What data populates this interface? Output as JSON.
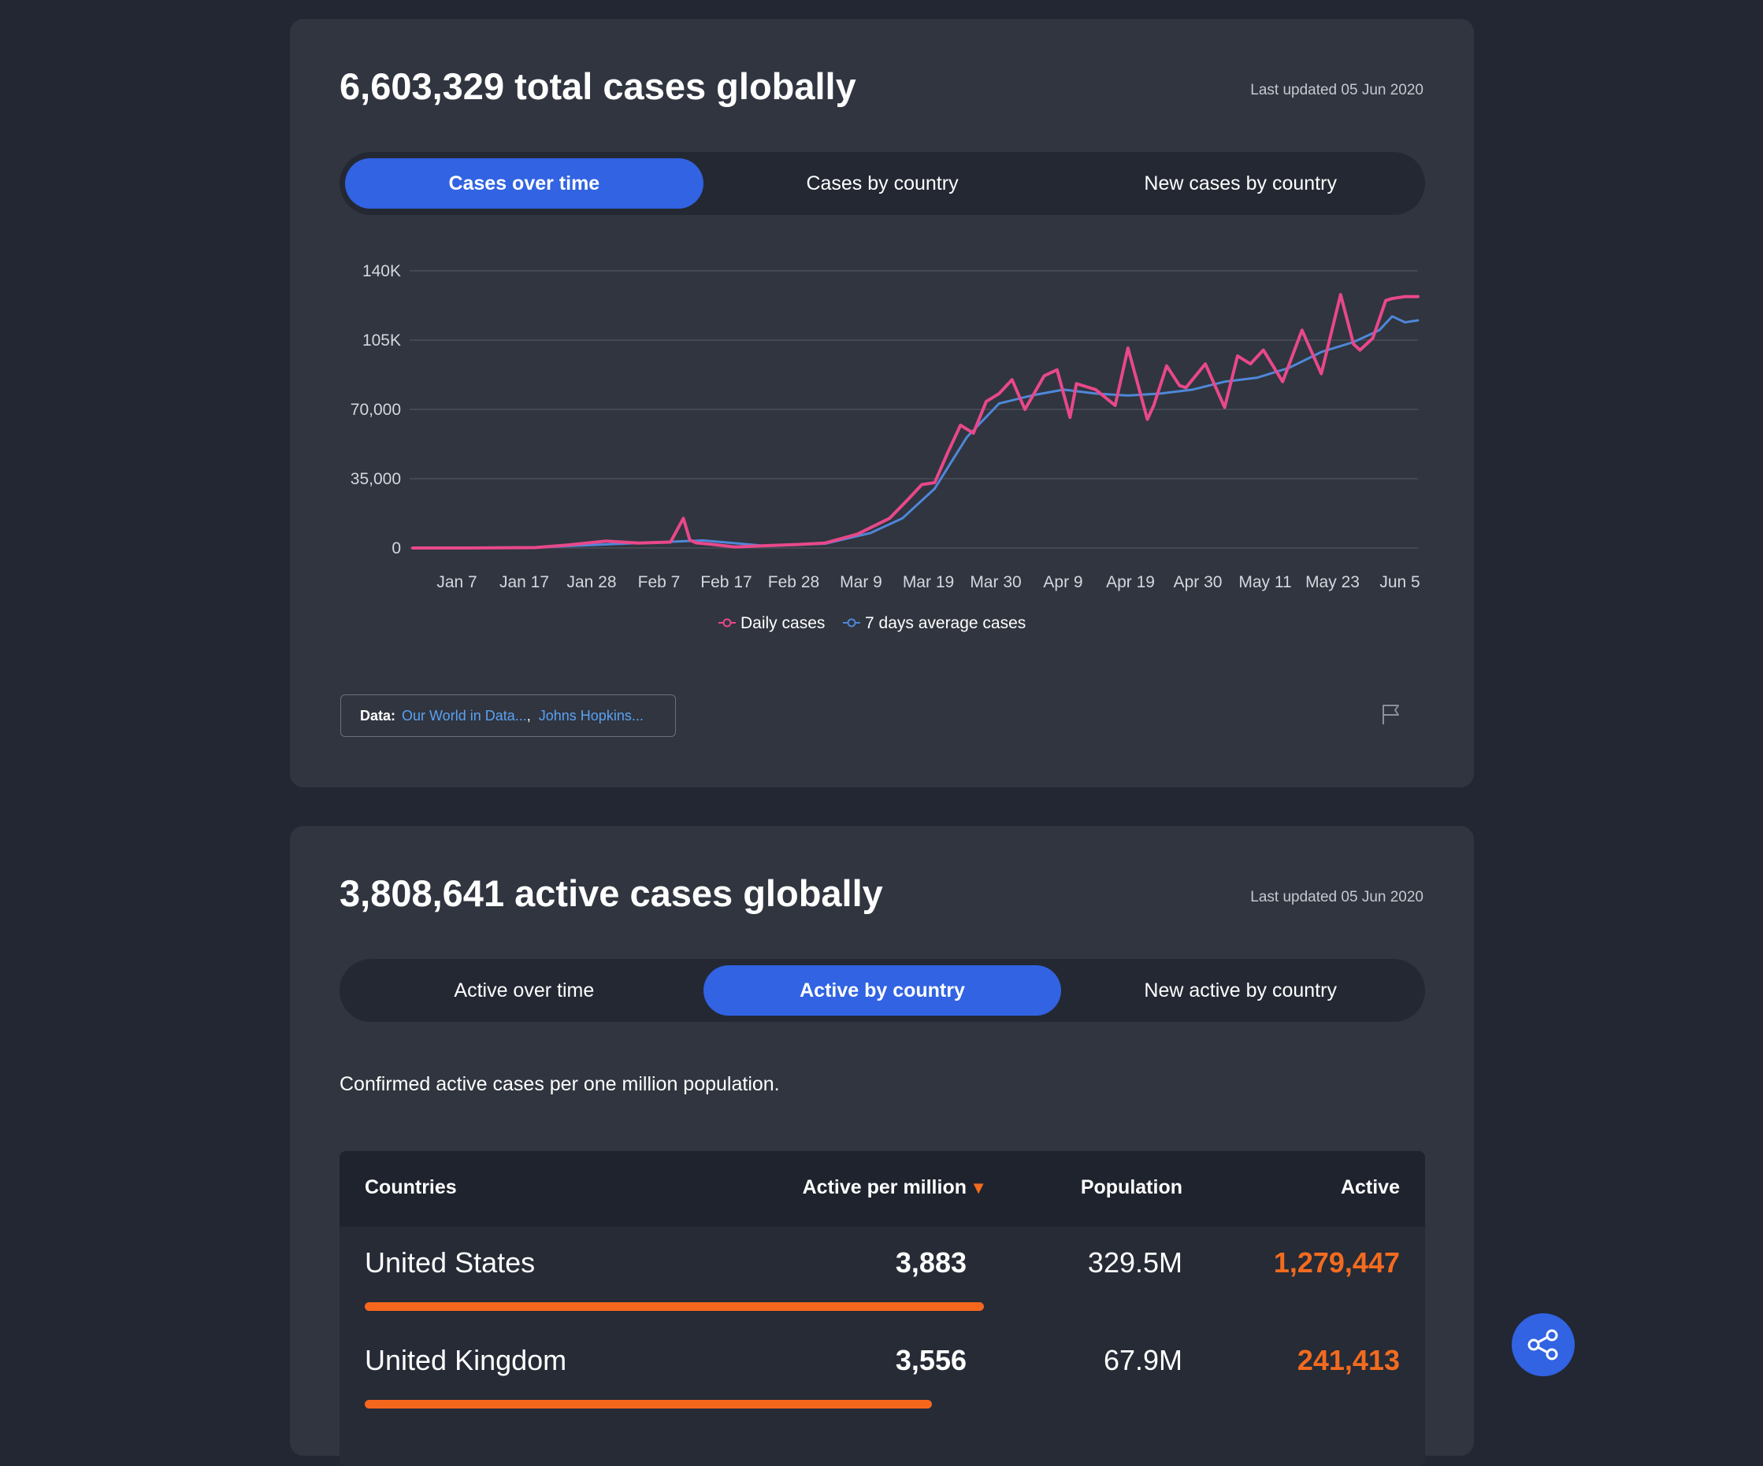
{
  "total_card": {
    "title": "6,603,329 total cases globally",
    "updated": "Last updated 05 Jun 2020",
    "tabs": [
      {
        "label": "Cases over time",
        "active": true
      },
      {
        "label": "Cases by country",
        "active": false
      },
      {
        "label": "New cases by country",
        "active": false
      }
    ],
    "source": {
      "label": "Data:",
      "links": [
        "Our World in Data...",
        "Johns Hopkins..."
      ],
      "separator": ","
    },
    "flag_icon": "flag-icon"
  },
  "chart_data": {
    "type": "line",
    "title": "",
    "xlabel": "",
    "ylabel": "",
    "x_tick_labels": [
      "Jan 7",
      "Jan 17",
      "Jan 28",
      "Feb 7",
      "Feb 17",
      "Feb 28",
      "Mar 9",
      "Mar 19",
      "Mar 30",
      "Apr 9",
      "Apr 19",
      "Apr 30",
      "May 11",
      "May 23",
      "Jun 5"
    ],
    "y_tick_labels": [
      "0",
      "35,000",
      "70,000",
      "105K",
      "140K"
    ],
    "y_ticks": [
      0,
      35000,
      70000,
      105000,
      140000
    ],
    "ylim": [
      0,
      140000
    ],
    "x_range": [
      "2020-01-01",
      "2020-06-05"
    ],
    "grid": true,
    "legend_position": "bottom",
    "series": [
      {
        "name": "Daily cases",
        "color": "#e8488a",
        "x": [
          "2020-01-01",
          "2020-01-10",
          "2020-01-20",
          "2020-01-25",
          "2020-01-31",
          "2020-02-05",
          "2020-02-10",
          "2020-02-12",
          "2020-02-13",
          "2020-02-14",
          "2020-02-16",
          "2020-02-20",
          "2020-02-25",
          "2020-03-01",
          "2020-03-05",
          "2020-03-10",
          "2020-03-15",
          "2020-03-18",
          "2020-03-20",
          "2020-03-22",
          "2020-03-24",
          "2020-03-26",
          "2020-03-28",
          "2020-03-30",
          "2020-04-01",
          "2020-04-03",
          "2020-04-05",
          "2020-04-08",
          "2020-04-10",
          "2020-04-12",
          "2020-04-13",
          "2020-04-16",
          "2020-04-19",
          "2020-04-21",
          "2020-04-24",
          "2020-04-25",
          "2020-04-27",
          "2020-04-29",
          "2020-04-30",
          "2020-05-03",
          "2020-05-06",
          "2020-05-08",
          "2020-05-10",
          "2020-05-12",
          "2020-05-15",
          "2020-05-18",
          "2020-05-21",
          "2020-05-24",
          "2020-05-26",
          "2020-05-27",
          "2020-05-29",
          "2020-05-31",
          "2020-06-01",
          "2020-06-03",
          "2020-06-05"
        ],
        "values": [
          0,
          0,
          200,
          1500,
          3500,
          2500,
          3000,
          15000,
          4000,
          2600,
          2000,
          500,
          1200,
          1800,
          2500,
          7000,
          15000,
          25000,
          32000,
          33000,
          48000,
          62000,
          58000,
          74000,
          78000,
          85000,
          70000,
          87000,
          90000,
          66000,
          83000,
          80000,
          72000,
          101000,
          65000,
          72000,
          92000,
          82000,
          81000,
          93000,
          71000,
          97000,
          93000,
          100000,
          84000,
          110000,
          88000,
          128000,
          103000,
          100000,
          106000,
          125000,
          126000,
          127000,
          127000
        ]
      },
      {
        "name": "7 days average cases",
        "color": "#4f87d8",
        "x": [
          "2020-01-01",
          "2020-01-20",
          "2020-02-05",
          "2020-02-15",
          "2020-02-25",
          "2020-03-05",
          "2020-03-12",
          "2020-03-17",
          "2020-03-22",
          "2020-03-27",
          "2020-04-01",
          "2020-04-06",
          "2020-04-11",
          "2020-04-16",
          "2020-04-21",
          "2020-04-26",
          "2020-05-01",
          "2020-05-06",
          "2020-05-11",
          "2020-05-16",
          "2020-05-21",
          "2020-05-26",
          "2020-05-30",
          "2020-06-01",
          "2020-06-03",
          "2020-06-05"
        ],
        "values": [
          0,
          300,
          2500,
          3800,
          1000,
          2200,
          7500,
          15000,
          30000,
          56000,
          73000,
          77000,
          80000,
          78000,
          77000,
          78000,
          80000,
          84000,
          86000,
          91000,
          99000,
          104000,
          110000,
          117000,
          114000,
          115000
        ]
      }
    ]
  },
  "active_card": {
    "title": "3,808,641 active cases globally",
    "updated": "Last updated 05 Jun 2020",
    "tabs": [
      {
        "label": "Active over time",
        "active": false
      },
      {
        "label": "Active by country",
        "active": true
      },
      {
        "label": "New active by country",
        "active": false
      }
    ],
    "description": "Confirmed active cases per one million population.",
    "table": {
      "headers": {
        "country": "Countries",
        "per_million": "Active per million",
        "sort_indicator": "▼",
        "population": "Population",
        "active": "Active"
      },
      "rows": [
        {
          "country": "United States",
          "per_million": "3,883",
          "population": "329.5M",
          "active": "1,279,447",
          "bar_fraction": 1.0
        },
        {
          "country": "United Kingdom",
          "per_million": "3,556",
          "population": "67.9M",
          "active": "241,413",
          "bar_fraction": 0.9158
        }
      ]
    }
  },
  "share_button": {
    "icon": "share-icon"
  },
  "colors": {
    "accent": "#3163e2",
    "daily_cases": "#e8488a",
    "average_cases": "#4f87d8",
    "active_highlight": "#f36b1f"
  }
}
